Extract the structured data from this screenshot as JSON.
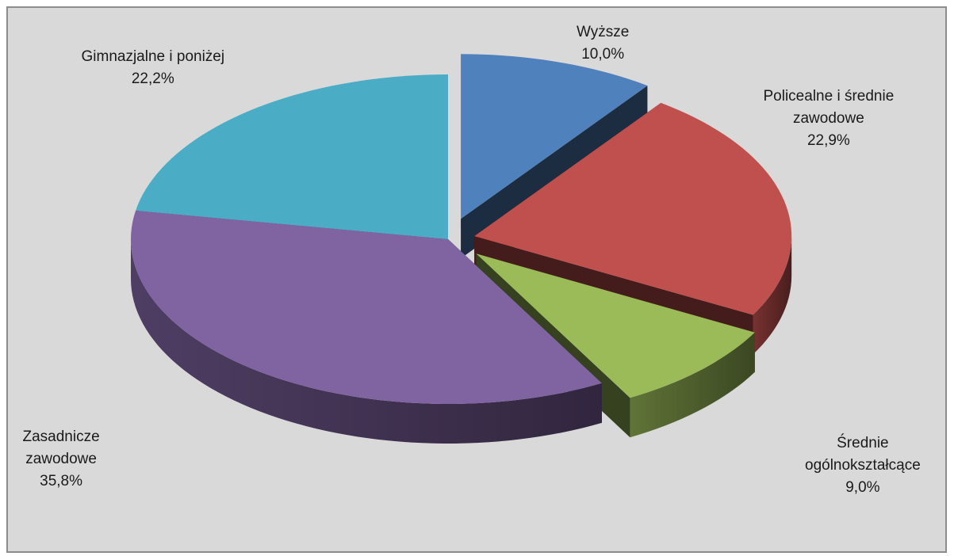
{
  "chart_data": {
    "type": "pie",
    "variant": "3d-exploded",
    "title": "",
    "categories": [
      "Wyższe",
      "Policealne i średnie zawodowe",
      "Średnie ogólnokształcące",
      "Zasadnicze zawodowe",
      "Gimnazjalne i poniżej"
    ],
    "values": [
      10.0,
      22.9,
      9.0,
      35.8,
      22.2
    ],
    "value_labels": [
      "10,0%",
      "22,9%",
      "9,0%",
      "35,8%",
      "22,2%"
    ],
    "label_lines": [
      [
        "Wyższe"
      ],
      [
        "Policealne i średnie",
        "zawodowe"
      ],
      [
        "Średnie",
        "ogólnokształcące"
      ],
      [
        "Zasadnicze",
        "zawodowe"
      ],
      [
        "Gimnazjalne i poniżej"
      ]
    ],
    "colors": [
      "#4f81bd",
      "#c0504d",
      "#9bbb59",
      "#8064a2",
      "#4bacc6"
    ],
    "legend": "none",
    "background": "#d9d9d9"
  }
}
